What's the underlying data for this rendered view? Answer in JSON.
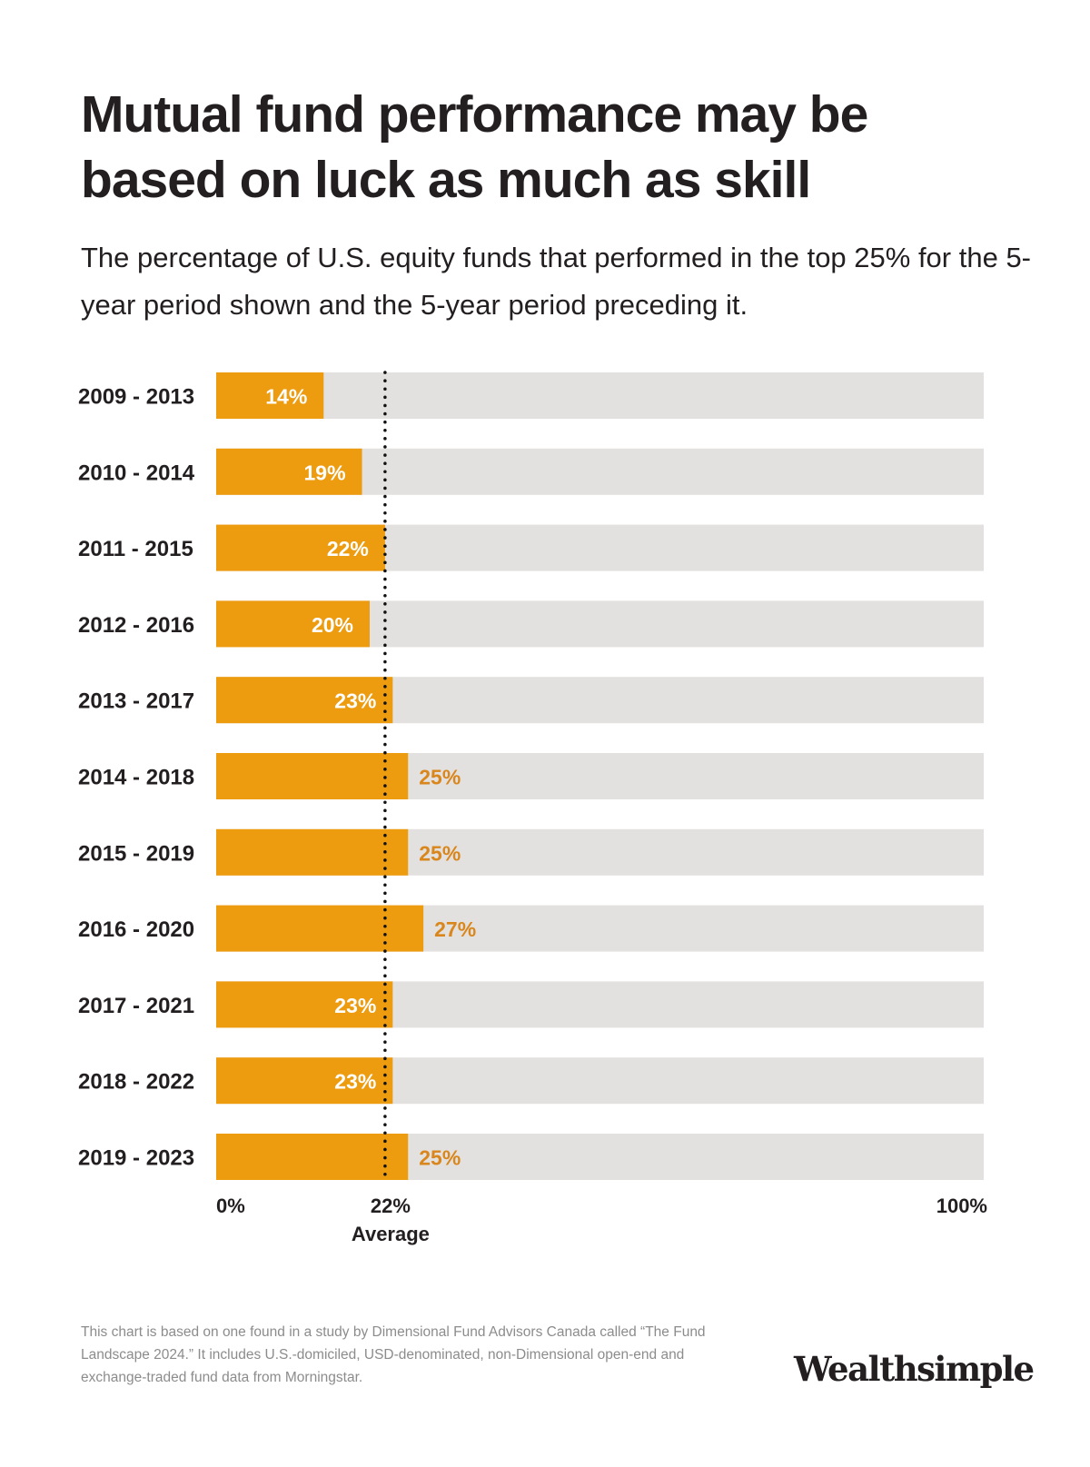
{
  "title": "Mutual fund performance may be based on luck as much as skill",
  "subtitle": "The percentage of U.S. equity funds that performed in the top 25% for the 5-year period shown and the 5-year period preceding it.",
  "footnote": "This chart is based on one found in a study by Dimensional Fund Advisors Canada called “The Fund Landscape 2024.” It includes U.S.-domiciled, USD-denominated, non-Dimensional open-end and exchange-traded fund data from Morningstar.",
  "logo": "Wealthsimple",
  "colors": {
    "bar": "#ed9b0f",
    "track": "#e3e1df",
    "label_outside": "#d9861c",
    "label_inside": "#ffffff",
    "text": "#231f20",
    "footnote": "#8c8c8c"
  },
  "chart_data": {
    "type": "bar",
    "orientation": "horizontal",
    "categories": [
      "2009 - 2013",
      "2010 - 2014",
      "2011 - 2015",
      "2012 - 2016",
      "2013 - 2017",
      "2014 - 2018",
      "2015 - 2019",
      "2016 - 2020",
      "2017 - 2021",
      "2018 - 2022",
      "2019 - 2023"
    ],
    "values": [
      14,
      19,
      22,
      20,
      23,
      25,
      25,
      27,
      23,
      23,
      25
    ],
    "data_labels": [
      "14%",
      "19%",
      "22%",
      "20%",
      "23%",
      "25%",
      "25%",
      "27%",
      "23%",
      "23%",
      "25%"
    ],
    "xlim": [
      0,
      100
    ],
    "tick_labels": [
      "0%",
      "100%"
    ],
    "reference_line": {
      "value": 22,
      "label": "22%",
      "caption": "Average",
      "style": "dotted"
    },
    "grid": false
  }
}
